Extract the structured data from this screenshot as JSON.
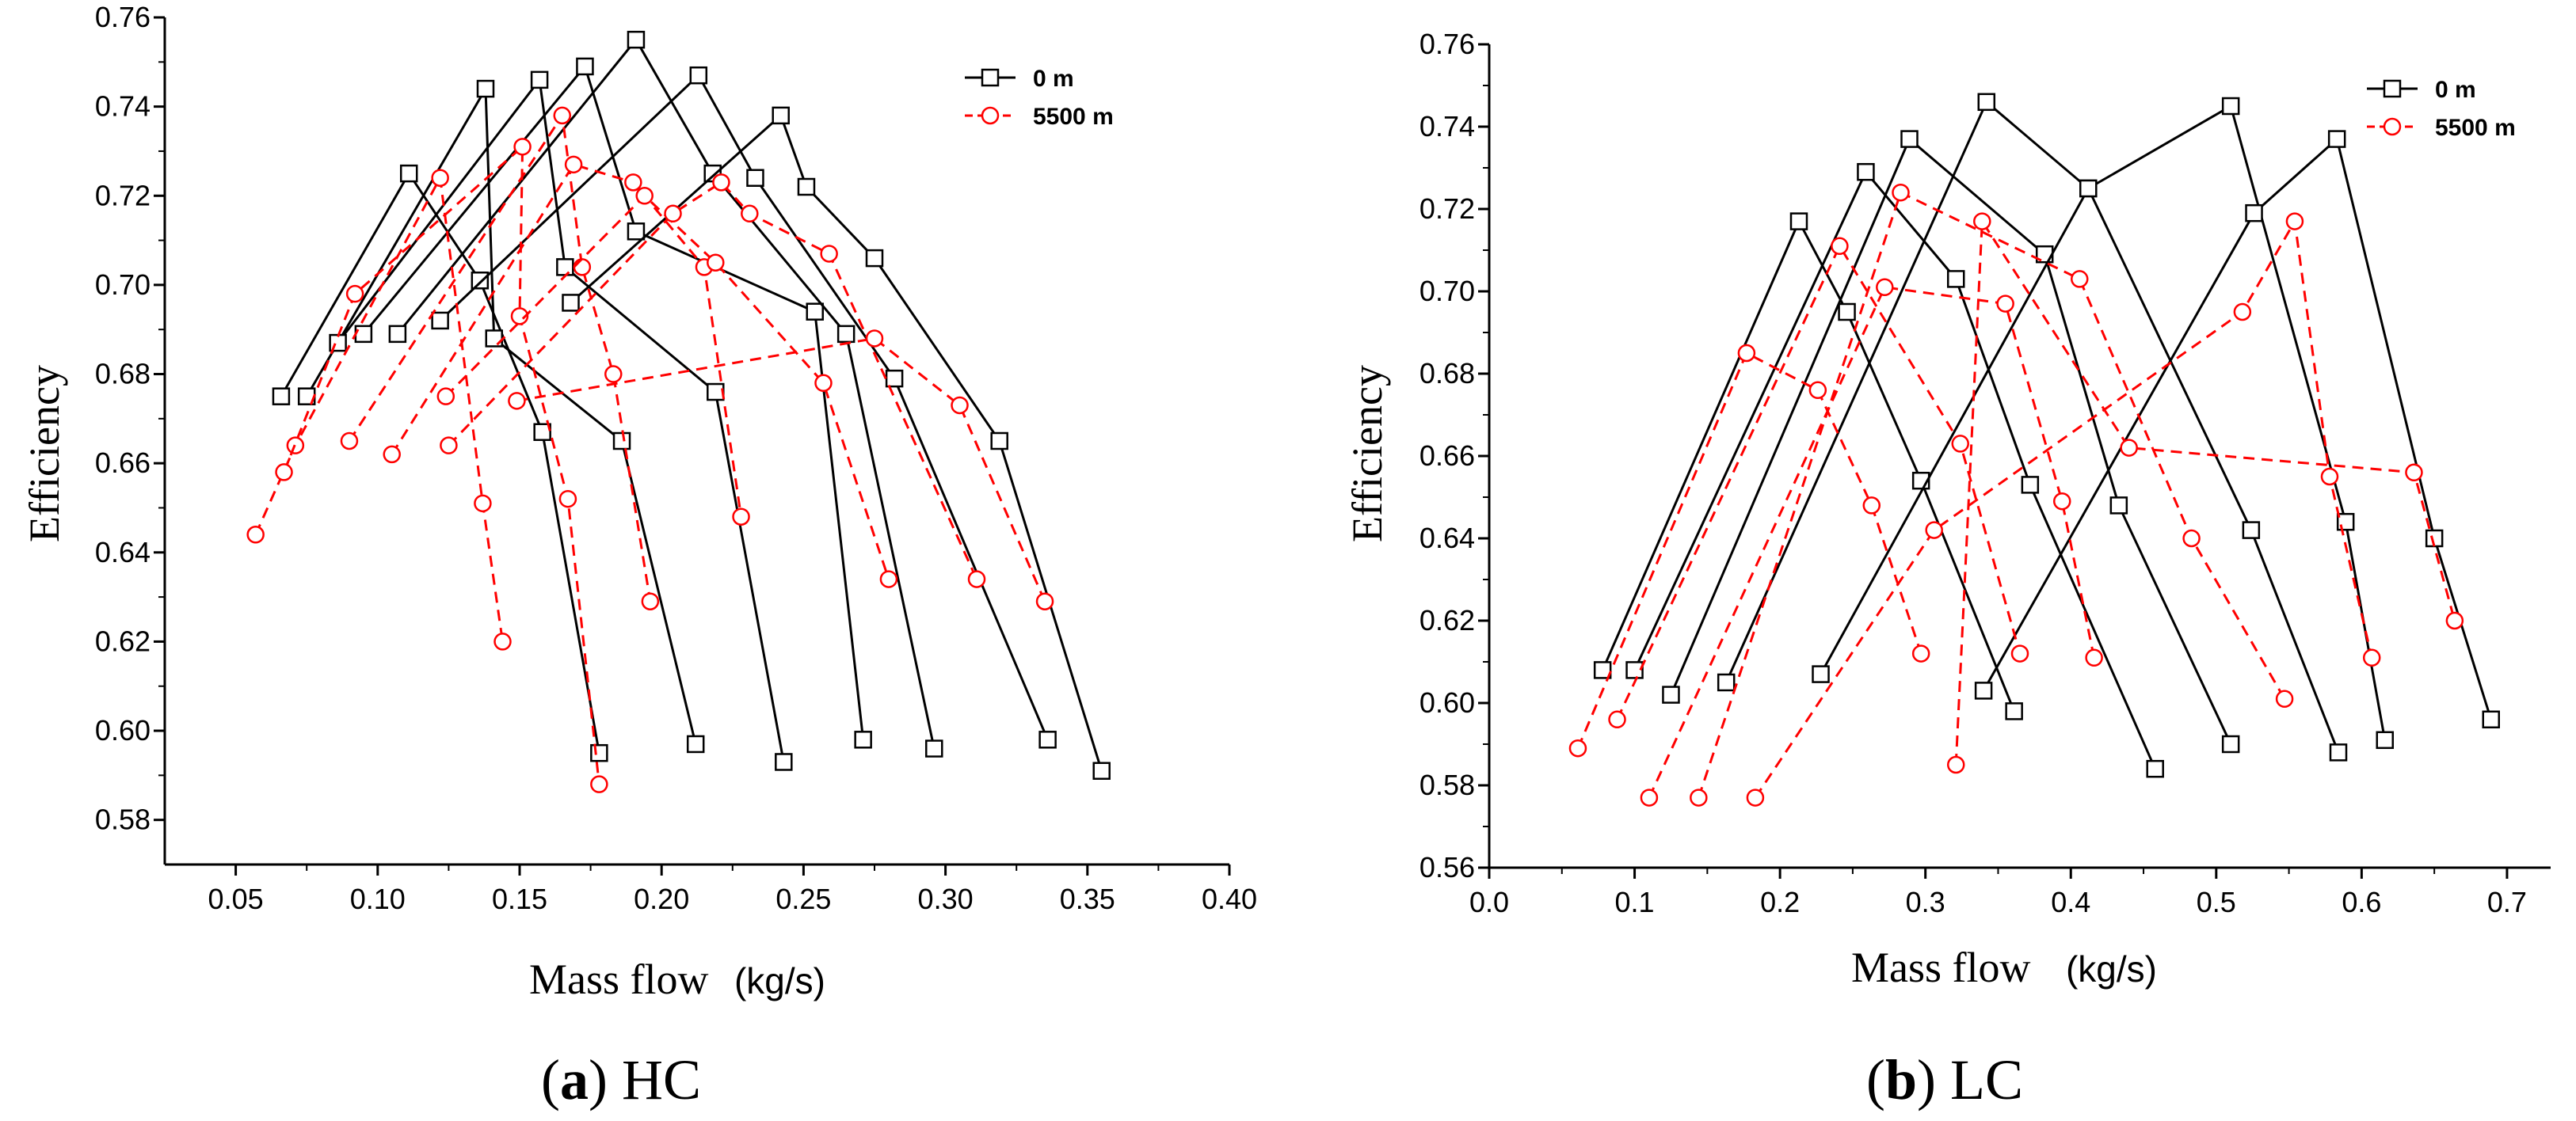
{
  "chart_data": [
    {
      "type": "line",
      "id": "hc",
      "caption_letter": "a",
      "caption_text": " HC",
      "xlabel": "Mass flow",
      "xunit": "(kg/s)",
      "ylabel": "Efficiency",
      "xlim": [
        0.025,
        0.4
      ],
      "ylim": [
        0.57,
        0.76
      ],
      "xticks": [
        0.05,
        0.1,
        0.15,
        0.2,
        0.25,
        0.3,
        0.35,
        0.4
      ],
      "xtick_labels": [
        "0.05",
        "0.10",
        "0.15",
        "0.20",
        "0.25",
        "0.30",
        "0.35",
        "0.40"
      ],
      "yticks": [
        0.58,
        0.6,
        0.62,
        0.64,
        0.66,
        0.68,
        0.7,
        0.72,
        0.74,
        0.76
      ],
      "ytick_labels": [
        "0.58",
        "0.60",
        "0.62",
        "0.64",
        "0.66",
        "0.68",
        "0.70",
        "0.72",
        "0.74",
        "0.76"
      ],
      "legend": {
        "position": "top-right",
        "entries": [
          "0 m",
          "5500 m"
        ]
      },
      "series": [
        {
          "name": "0 m",
          "group": 0,
          "points": [
            [
              0.066,
              0.675
            ],
            [
              0.111,
              0.725
            ],
            [
              0.136,
              0.701
            ],
            [
              0.158,
              0.667
            ],
            [
              0.178,
              0.595
            ]
          ]
        },
        {
          "name": "0 m",
          "group": 0,
          "points": [
            [
              0.075,
              0.675
            ],
            [
              0.138,
              0.744
            ],
            [
              0.141,
              0.688
            ],
            [
              0.186,
              0.665
            ],
            [
              0.212,
              0.597
            ]
          ]
        },
        {
          "name": "0 m",
          "group": 0,
          "points": [
            [
              0.086,
              0.687
            ],
            [
              0.157,
              0.746
            ],
            [
              0.166,
              0.704
            ],
            [
              0.219,
              0.676
            ],
            [
              0.243,
              0.593
            ]
          ]
        },
        {
          "name": "0 m",
          "group": 0,
          "points": [
            [
              0.095,
              0.689
            ],
            [
              0.173,
              0.749
            ],
            [
              0.191,
              0.712
            ],
            [
              0.254,
              0.694
            ],
            [
              0.271,
              0.598
            ]
          ]
        },
        {
          "name": "0 m",
          "group": 0,
          "points": [
            [
              0.107,
              0.689
            ],
            [
              0.191,
              0.755
            ],
            [
              0.218,
              0.725
            ],
            [
              0.265,
              0.689
            ],
            [
              0.296,
              0.596
            ]
          ]
        },
        {
          "name": "0 m",
          "group": 0,
          "points": [
            [
              0.122,
              0.692
            ],
            [
              0.213,
              0.747
            ],
            [
              0.233,
              0.724
            ],
            [
              0.282,
              0.679
            ],
            [
              0.336,
              0.598
            ]
          ]
        },
        {
          "name": "0 m",
          "group": 0,
          "points": [
            [
              0.168,
              0.696
            ],
            [
              0.242,
              0.738
            ],
            [
              0.251,
              0.722
            ],
            [
              0.275,
              0.706
            ],
            [
              0.319,
              0.665
            ],
            [
              0.355,
              0.591
            ]
          ]
        },
        {
          "name": "5500 m",
          "group": 1,
          "points": [
            [
              0.057,
              0.644
            ],
            [
              0.071,
              0.664
            ],
            [
              0.122,
              0.724
            ],
            [
              0.137,
              0.651
            ],
            [
              0.144,
              0.62
            ]
          ]
        },
        {
          "name": "5500 m",
          "group": 1,
          "points": [
            [
              0.067,
              0.658
            ],
            [
              0.092,
              0.698
            ],
            [
              0.151,
              0.731
            ],
            [
              0.15,
              0.693
            ],
            [
              0.167,
              0.652
            ],
            [
              0.178,
              0.588
            ]
          ]
        },
        {
          "name": "5500 m",
          "group": 1,
          "points": [
            [
              0.09,
              0.665
            ],
            [
              0.165,
              0.738
            ],
            [
              0.172,
              0.704
            ],
            [
              0.183,
              0.68
            ],
            [
              0.196,
              0.629
            ]
          ]
        },
        {
          "name": "5500 m",
          "group": 1,
          "points": [
            [
              0.105,
              0.662
            ],
            [
              0.169,
              0.727
            ],
            [
              0.19,
              0.723
            ],
            [
              0.215,
              0.704
            ],
            [
              0.228,
              0.648
            ]
          ]
        },
        {
          "name": "5500 m",
          "group": 1,
          "points": [
            [
              0.124,
              0.675
            ],
            [
              0.194,
              0.72
            ],
            [
              0.219,
              0.705
            ],
            [
              0.257,
              0.678
            ],
            [
              0.28,
              0.634
            ]
          ]
        },
        {
          "name": "5500 m",
          "group": 1,
          "points": [
            [
              0.125,
              0.664
            ],
            [
              0.204,
              0.716
            ],
            [
              0.221,
              0.723
            ],
            [
              0.231,
              0.716
            ],
            [
              0.259,
              0.707
            ],
            [
              0.311,
              0.634
            ]
          ]
        },
        {
          "name": "5500 m",
          "group": 1,
          "points": [
            [
              0.149,
              0.674
            ],
            [
              0.275,
              0.688
            ],
            [
              0.305,
              0.673
            ],
            [
              0.335,
              0.629
            ]
          ]
        }
      ]
    },
    {
      "type": "line",
      "id": "lc",
      "caption_letter": "b",
      "caption_text": " LC",
      "xlabel": "Mass flow",
      "xunit": "(kg/s)",
      "ylabel": "Efficiency",
      "xlim": [
        0.0,
        0.73
      ],
      "ylim": [
        0.56,
        0.76
      ],
      "xticks": [
        0.0,
        0.1,
        0.2,
        0.3,
        0.4,
        0.5,
        0.6,
        0.7
      ],
      "xtick_labels": [
        "0.0",
        "0.1",
        "0.2",
        "0.3",
        "0.4",
        "0.5",
        "0.6",
        "0.7"
      ],
      "yticks": [
        0.56,
        0.58,
        0.6,
        0.62,
        0.64,
        0.66,
        0.68,
        0.7,
        0.72,
        0.74,
        0.76
      ],
      "ytick_labels": [
        "0.56",
        "0.58",
        "0.60",
        "0.62",
        "0.64",
        "0.66",
        "0.68",
        "0.70",
        "0.72",
        "0.74",
        "0.76"
      ],
      "legend": {
        "position": "top-right",
        "entries": [
          "0 m",
          "5500 m"
        ]
      },
      "series": [
        {
          "name": "0 m",
          "group": 0,
          "points": [
            [
              0.078,
              0.608
            ],
            [
              0.213,
              0.717
            ],
            [
              0.246,
              0.695
            ],
            [
              0.297,
              0.654
            ],
            [
              0.361,
              0.598
            ]
          ]
        },
        {
          "name": "0 m",
          "group": 0,
          "points": [
            [
              0.1,
              0.608
            ],
            [
              0.259,
              0.729
            ],
            [
              0.321,
              0.703
            ],
            [
              0.372,
              0.653
            ],
            [
              0.458,
              0.584
            ]
          ]
        },
        {
          "name": "0 m",
          "group": 0,
          "points": [
            [
              0.125,
              0.602
            ],
            [
              0.289,
              0.737
            ],
            [
              0.382,
              0.709
            ],
            [
              0.433,
              0.648
            ],
            [
              0.51,
              0.59
            ]
          ]
        },
        {
          "name": "0 m",
          "group": 0,
          "points": [
            [
              0.163,
              0.605
            ],
            [
              0.342,
              0.746
            ],
            [
              0.412,
              0.725
            ],
            [
              0.524,
              0.642
            ],
            [
              0.584,
              0.588
            ]
          ]
        },
        {
          "name": "0 m",
          "group": 0,
          "points": [
            [
              0.228,
              0.607
            ],
            [
              0.412,
              0.725
            ],
            [
              0.51,
              0.745
            ],
            [
              0.589,
              0.644
            ],
            [
              0.616,
              0.591
            ]
          ]
        },
        {
          "name": "0 m",
          "group": 0,
          "points": [
            [
              0.34,
              0.603
            ],
            [
              0.526,
              0.719
            ],
            [
              0.583,
              0.737
            ],
            [
              0.65,
              0.64
            ],
            [
              0.689,
              0.596
            ]
          ]
        },
        {
          "name": "5500 m",
          "group": 1,
          "points": [
            [
              0.061,
              0.589
            ],
            [
              0.177,
              0.685
            ],
            [
              0.226,
              0.676
            ],
            [
              0.263,
              0.648
            ],
            [
              0.297,
              0.612
            ]
          ]
        },
        {
          "name": "5500 m",
          "group": 1,
          "points": [
            [
              0.088,
              0.596
            ],
            [
              0.241,
              0.711
            ],
            [
              0.324,
              0.663
            ],
            [
              0.365,
              0.612
            ]
          ]
        },
        {
          "name": "5500 m",
          "group": 1,
          "points": [
            [
              0.11,
              0.577
            ],
            [
              0.272,
              0.701
            ],
            [
              0.355,
              0.697
            ],
            [
              0.394,
              0.649
            ],
            [
              0.416,
              0.611
            ]
          ]
        },
        {
          "name": "5500 m",
          "group": 1,
          "points": [
            [
              0.144,
              0.577
            ],
            [
              0.283,
              0.724
            ],
            [
              0.406,
              0.703
            ],
            [
              0.483,
              0.64
            ],
            [
              0.547,
              0.601
            ]
          ]
        },
        {
          "name": "5500 m",
          "group": 1,
          "points": [
            [
              0.183,
              0.577
            ],
            [
              0.306,
              0.642
            ],
            [
              0.518,
              0.695
            ],
            [
              0.554,
              0.717
            ],
            [
              0.578,
              0.655
            ],
            [
              0.607,
              0.611
            ]
          ]
        },
        {
          "name": "5500 m",
          "group": 1,
          "points": [
            [
              0.321,
              0.585
            ],
            [
              0.339,
              0.717
            ],
            [
              0.44,
              0.662
            ],
            [
              0.636,
              0.656
            ],
            [
              0.664,
              0.62
            ]
          ]
        }
      ]
    }
  ],
  "colors": {
    "series_0m": "#000000",
    "series_5500m": "#ff0000",
    "axis": "#000000"
  }
}
